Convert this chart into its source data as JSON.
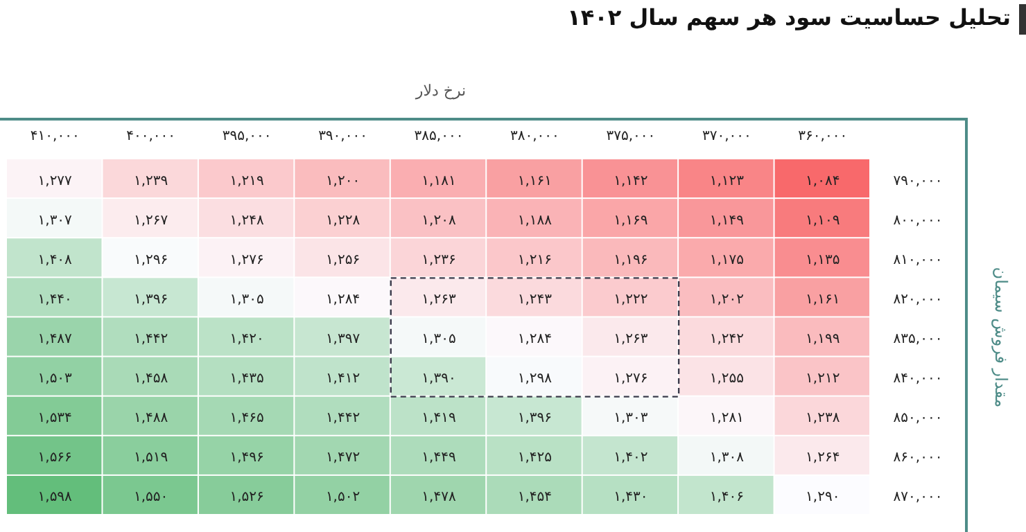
{
  "chart_data": {
    "type": "heatmap",
    "title": "تحلیل حساسیت سود هر سهم سال ۱۴۰۲",
    "xlabel": "نرخ دلار",
    "ylabel": "مقدار فروش سیمان",
    "categories": [
      "۴۱۰,۰۰۰",
      "۴۰۰,۰۰۰",
      "۳۹۵,۰۰۰",
      "۳۹۰,۰۰۰",
      "۳۸۵,۰۰۰",
      "۳۸۰,۰۰۰",
      "۳۷۵,۰۰۰",
      "۳۷۰,۰۰۰",
      "۳۶۰,۰۰۰"
    ],
    "y_categories": [
      "۷۹۰,۰۰۰",
      "۸۰۰,۰۰۰",
      "۸۱۰,۰۰۰",
      "۸۲۰,۰۰۰",
      "۸۳۵,۰۰۰",
      "۸۴۰,۰۰۰",
      "۸۵۰,۰۰۰",
      "۸۶۰,۰۰۰",
      "۸۷۰,۰۰۰"
    ],
    "cells": [
      [
        1277,
        1239,
        1219,
        1200,
        1181,
        1161,
        1142,
        1123,
        1084
      ],
      [
        1307,
        1267,
        1248,
        1228,
        1208,
        1188,
        1169,
        1149,
        1109
      ],
      [
        1408,
        1296,
        1276,
        1256,
        1236,
        1216,
        1196,
        1175,
        1135
      ],
      [
        1440,
        1396,
        1305,
        1284,
        1263,
        1243,
        1222,
        1202,
        1161
      ],
      [
        1487,
        1442,
        1420,
        1397,
        1305,
        1284,
        1263,
        1242,
        1199
      ],
      [
        1503,
        1458,
        1435,
        1412,
        1390,
        1298,
        1276,
        1255,
        1212
      ],
      [
        1534,
        1488,
        1465,
        1442,
        1419,
        1396,
        1303,
        1281,
        1238
      ],
      [
        1566,
        1519,
        1496,
        1472,
        1449,
        1425,
        1402,
        1308,
        1264
      ],
      [
        1598,
        1550,
        1526,
        1502,
        1478,
        1454,
        1430,
        1406,
        1290
      ]
    ],
    "cell_labels": [
      [
        "۱,۲۷۷",
        "۱,۲۳۹",
        "۱,۲۱۹",
        "۱,۲۰۰",
        "۱,۱۸۱",
        "۱,۱۶۱",
        "۱,۱۴۲",
        "۱,۱۲۳",
        "۱,۰۸۴"
      ],
      [
        "۱,۳۰۷",
        "۱,۲۶۷",
        "۱,۲۴۸",
        "۱,۲۲۸",
        "۱,۲۰۸",
        "۱,۱۸۸",
        "۱,۱۶۹",
        "۱,۱۴۹",
        "۱,۱۰۹"
      ],
      [
        "۱,۴۰۸",
        "۱,۲۹۶",
        "۱,۲۷۶",
        "۱,۲۵۶",
        "۱,۲۳۶",
        "۱,۲۱۶",
        "۱,۱۹۶",
        "۱,۱۷۵",
        "۱,۱۳۵"
      ],
      [
        "۱,۴۴۰",
        "۱,۳۹۶",
        "۱,۳۰۵",
        "۱,۲۸۴",
        "۱,۲۶۳",
        "۱,۲۴۳",
        "۱,۲۲۲",
        "۱,۲۰۲",
        "۱,۱۶۱"
      ],
      [
        "۱,۴۸۷",
        "۱,۴۴۲",
        "۱,۴۲۰",
        "۱,۳۹۷",
        "۱,۳۰۵",
        "۱,۲۸۴",
        "۱,۲۶۳",
        "۱,۲۴۲",
        "۱,۱۹۹"
      ],
      [
        "۱,۵۰۳",
        "۱,۴۵۸",
        "۱,۴۳۵",
        "۱,۴۱۲",
        "۱,۳۹۰",
        "۱,۲۹۸",
        "۱,۲۷۶",
        "۱,۲۵۵",
        "۱,۲۱۲"
      ],
      [
        "۱,۵۳۴",
        "۱,۴۸۸",
        "۱,۴۶۵",
        "۱,۴۴۲",
        "۱,۴۱۹",
        "۱,۳۹۶",
        "۱,۳۰۳",
        "۱,۲۸۱",
        "۱,۲۳۸"
      ],
      [
        "۱,۵۶۶",
        "۱,۵۱۹",
        "۱,۴۹۶",
        "۱,۴۷۲",
        "۱,۴۴۹",
        "۱,۴۲۵",
        "۱,۴۰۲",
        "۱,۳۰۸",
        "۱,۲۶۴"
      ],
      [
        "۱,۵۹۸",
        "۱,۵۵۰",
        "۱,۵۲۶",
        "۱,۵۰۲",
        "۱,۴۷۸",
        "۱,۴۵۴",
        "۱,۴۳۰",
        "۱,۴۰۶",
        "۱,۲۹۰"
      ]
    ]
  }
}
